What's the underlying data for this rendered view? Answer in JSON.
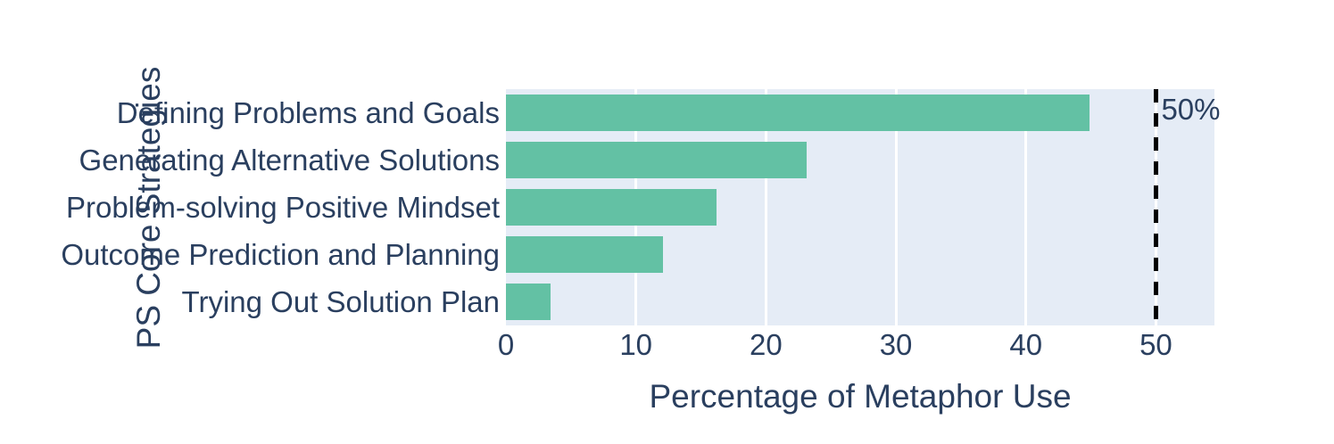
{
  "page": {
    "background": "#ffffff"
  },
  "chart_data": {
    "type": "bar",
    "orientation": "horizontal",
    "xlabel": "Percentage of Metaphor Use",
    "ylabel": "PS Core Strategies",
    "categories": [
      "Defining Problems and Goals",
      "Generating Alternative Solutions",
      "Problem-solving Positive Mindset",
      "Outcome Prediction and Planning",
      "Trying Out Solution Plan"
    ],
    "values": [
      44.9,
      23.1,
      16.2,
      12.1,
      3.4
    ],
    "xlim": [
      0,
      54.5
    ],
    "xticks": [
      0,
      10,
      20,
      30,
      40,
      50
    ],
    "grid": true,
    "legend": "none",
    "reference_line": {
      "x": 50,
      "label": "50%",
      "style": "dashed",
      "color": "#000000"
    },
    "colors": {
      "bar": "#63c1a4",
      "plot_bg": "#e5ecf6",
      "grid": "#ffffff",
      "text": "#2a3f5f",
      "reference_line": "#000000"
    }
  }
}
